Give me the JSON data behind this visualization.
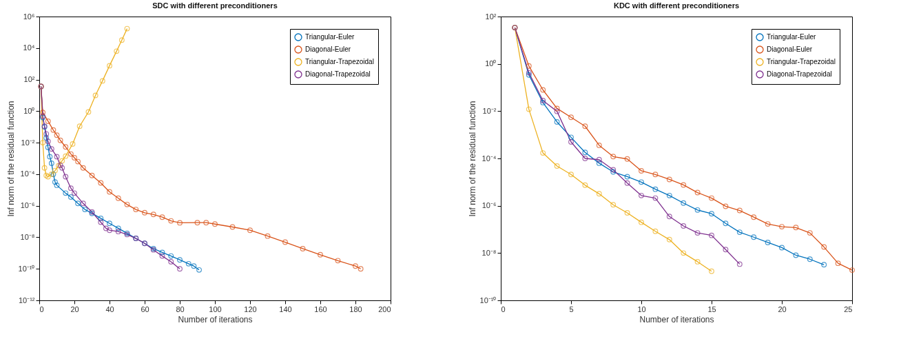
{
  "chart_data": [
    {
      "type": "line",
      "title": "SDC with different preconditioners",
      "xlabel": "Number of iterations",
      "ylabel": "Inf norm of the residual function",
      "log": "y",
      "marker": "circle",
      "line_style": "solid",
      "legend": "top right",
      "grid": false,
      "xlim": [
        0,
        200
      ],
      "xticks": [
        0,
        20,
        40,
        60,
        80,
        100,
        120,
        140,
        160,
        180,
        200
      ],
      "ylim": [
        1e-12,
        1000000.0
      ],
      "yticks": [
        {
          "value": 1e-12,
          "label": "10⁻¹²"
        },
        {
          "value": 1e-10,
          "label": "10⁻¹⁰"
        },
        {
          "value": 1e-08,
          "label": "10⁻⁸"
        },
        {
          "value": 1e-06,
          "label": "10⁻⁶"
        },
        {
          "value": 0.0001,
          "label": "10⁻⁴"
        },
        {
          "value": 0.01,
          "label": "10⁻²"
        },
        {
          "value": 1,
          "label": "10⁰"
        },
        {
          "value": 100,
          "label": "10²"
        },
        {
          "value": 10000,
          "label": "10⁴"
        },
        {
          "value": 1000000,
          "label": "10⁶"
        }
      ],
      "series": [
        {
          "name": "Triangular-Euler",
          "color": "#0072bd",
          "x": [
            1,
            2,
            3,
            4,
            5,
            6,
            7,
            8,
            9,
            10,
            15,
            18,
            22,
            26,
            30,
            35,
            40,
            45,
            50,
            55,
            60,
            65,
            70,
            75,
            80,
            85,
            88,
            91
          ],
          "values": [
            37,
            0.4,
            0.1,
            0.02,
            0.005,
            0.0013,
            0.0005,
            0.0001,
            3.2e-05,
            2e-05,
            6.3e-06,
            3.6e-06,
            1.4e-06,
            5.8e-07,
            3.3e-07,
            1.6e-07,
            7.6e-08,
            3.7e-08,
            1.8e-08,
            8.5e-09,
            4.1e-09,
            1.9e-09,
            1.1e-09,
            6.5e-10,
            3.7e-10,
            2.1e-10,
            1.5e-10,
            8.5e-11
          ]
        },
        {
          "name": "Diagonal-Euler",
          "color": "#d95319",
          "x": [
            1,
            2,
            5,
            8,
            10,
            12,
            15,
            18,
            20,
            22,
            25,
            30,
            35,
            40,
            45,
            50,
            55,
            60,
            65,
            70,
            75,
            80,
            90,
            95,
            100,
            110,
            120,
            130,
            140,
            150,
            160,
            170,
            180,
            183
          ],
          "values": [
            37,
            0.83,
            0.23,
            0.063,
            0.03,
            0.014,
            0.0054,
            0.0019,
            0.0011,
            0.00063,
            0.00025,
            8.3e-05,
            2.8e-05,
            7.6e-06,
            3e-06,
            1.2e-06,
            5.8e-07,
            3.6e-07,
            2.8e-07,
            1.9e-07,
            1.1e-07,
            8.3e-08,
            8.5e-08,
            8.5e-08,
            6.9e-08,
            4.5e-08,
            2.8e-08,
            1.2e-08,
            4.9e-09,
            1.9e-09,
            7.8e-10,
            3.3e-10,
            1.5e-10,
            1e-10
          ]
        },
        {
          "name": "Triangular-Trapezoidal",
          "color": "#edb120",
          "x": [
            1,
            2,
            3,
            4,
            5,
            7,
            9,
            11,
            13,
            15,
            19,
            23,
            28,
            32,
            36,
            40,
            44,
            47,
            50
          ],
          "values": [
            37,
            0.01,
            0.00025,
            8.3e-05,
            6.9e-05,
            0.0001,
            0.00017,
            0.00035,
            0.00071,
            0.0014,
            0.0083,
            0.11,
            0.89,
            10,
            83,
            760,
            6300,
            32000,
            170000
          ]
        },
        {
          "name": "Diagonal-Trapezoidal",
          "color": "#7e2f8e",
          "x": [
            1,
            2,
            3,
            4,
            5,
            7,
            10,
            12,
            13,
            15,
            18,
            20,
            25,
            30,
            35,
            38,
            40,
            45,
            50,
            55,
            60,
            65,
            70,
            75,
            80
          ],
          "values": [
            37,
            0.48,
            0.11,
            0.036,
            0.012,
            0.004,
            0.0013,
            0.00037,
            0.00025,
            6.9e-05,
            1.3e-05,
            6.3e-06,
            1.4e-06,
            4e-07,
            9.1e-08,
            3.7e-08,
            2.8e-08,
            2.3e-08,
            1.5e-08,
            8.5e-09,
            4.1e-09,
            1.6e-09,
            6.5e-10,
            2.8e-10,
            1e-10
          ]
        }
      ]
    },
    {
      "type": "line",
      "title": "KDC with different preconditioners",
      "xlabel": "Number of iterations",
      "ylabel": "Inf norm of the residual function",
      "log": "y",
      "marker": "circle",
      "line_style": "solid",
      "legend": "top right",
      "grid": false,
      "xlim": [
        0,
        25
      ],
      "xticks": [
        0,
        5,
        10,
        15,
        20,
        25
      ],
      "ylim": [
        1e-10,
        100
      ],
      "yticks": [
        {
          "value": 1e-10,
          "label": "10⁻¹⁰"
        },
        {
          "value": 1e-08,
          "label": "10⁻⁸"
        },
        {
          "value": 1e-06,
          "label": "10⁻⁶"
        },
        {
          "value": 0.0001,
          "label": "10⁻⁴"
        },
        {
          "value": 0.01,
          "label": "10⁻²"
        },
        {
          "value": 1,
          "label": "10⁰"
        },
        {
          "value": 100,
          "label": "10²"
        }
      ],
      "series": [
        {
          "name": "Triangular-Euler",
          "color": "#0072bd",
          "x": [
            1,
            2,
            3,
            4,
            5,
            6,
            7,
            8,
            9,
            10,
            11,
            12,
            13,
            14,
            15,
            16,
            17,
            18,
            19,
            20,
            21,
            22,
            23
          ],
          "values": [
            34,
            0.34,
            0.023,
            0.0035,
            0.00078,
            0.00018,
            6.3e-05,
            2.7e-05,
            1.7e-05,
            1e-05,
            5e-06,
            2.7e-06,
            1.3e-06,
            6.6e-07,
            4.6e-07,
            1.8e-07,
            7.6e-08,
            4.7e-08,
            2.8e-08,
            1.7e-08,
            8.1e-09,
            5.5e-09,
            3.2e-09
          ]
        },
        {
          "name": "Diagonal-Euler",
          "color": "#d95319",
          "x": [
            1,
            2,
            3,
            4,
            5,
            6,
            7,
            8,
            9,
            10,
            11,
            12,
            13,
            14,
            15,
            16,
            17,
            18,
            19,
            20,
            21,
            22,
            23,
            24,
            25
          ],
          "values": [
            34,
            0.81,
            0.079,
            0.013,
            0.0055,
            0.0023,
            0.00036,
            0.00012,
            9.5e-05,
            3e-05,
            2.1e-05,
            1.3e-05,
            7.6e-06,
            3.6e-06,
            2.1e-06,
            9.5e-07,
            6.3e-07,
            3.3e-07,
            1.7e-07,
            1.3e-07,
            1.2e-07,
            7.1e-08,
            1.8e-08,
            3.7e-09,
            1.9e-09
          ]
        },
        {
          "name": "Triangular-Trapezoidal",
          "color": "#edb120",
          "x": [
            1,
            2,
            3,
            4,
            5,
            6,
            7,
            8,
            9,
            10,
            11,
            12,
            13,
            14,
            15
          ],
          "values": [
            34,
            0.012,
            0.00017,
            4.8e-05,
            2.1e-05,
            7.4e-06,
            3.2e-06,
            1.1e-06,
            5e-07,
            2e-07,
            8.3e-08,
            3.7e-08,
            1e-08,
            4.3e-09,
            1.7e-09
          ]
        },
        {
          "name": "Diagonal-Trapezoidal",
          "color": "#7e2f8e",
          "x": [
            1,
            2,
            3,
            4,
            5,
            6,
            7,
            8,
            9,
            10,
            11,
            12,
            13,
            14,
            15,
            16,
            17
          ],
          "values": [
            34,
            0.42,
            0.028,
            0.0098,
            0.0005,
            0.0001,
            8.9e-05,
            3.3e-05,
            9.1e-06,
            2.7e-06,
            2.1e-06,
            3.5e-07,
            1.4e-07,
            7.1e-08,
            5.6e-08,
            1.4e-08,
            3.4e-09
          ]
        }
      ]
    }
  ]
}
